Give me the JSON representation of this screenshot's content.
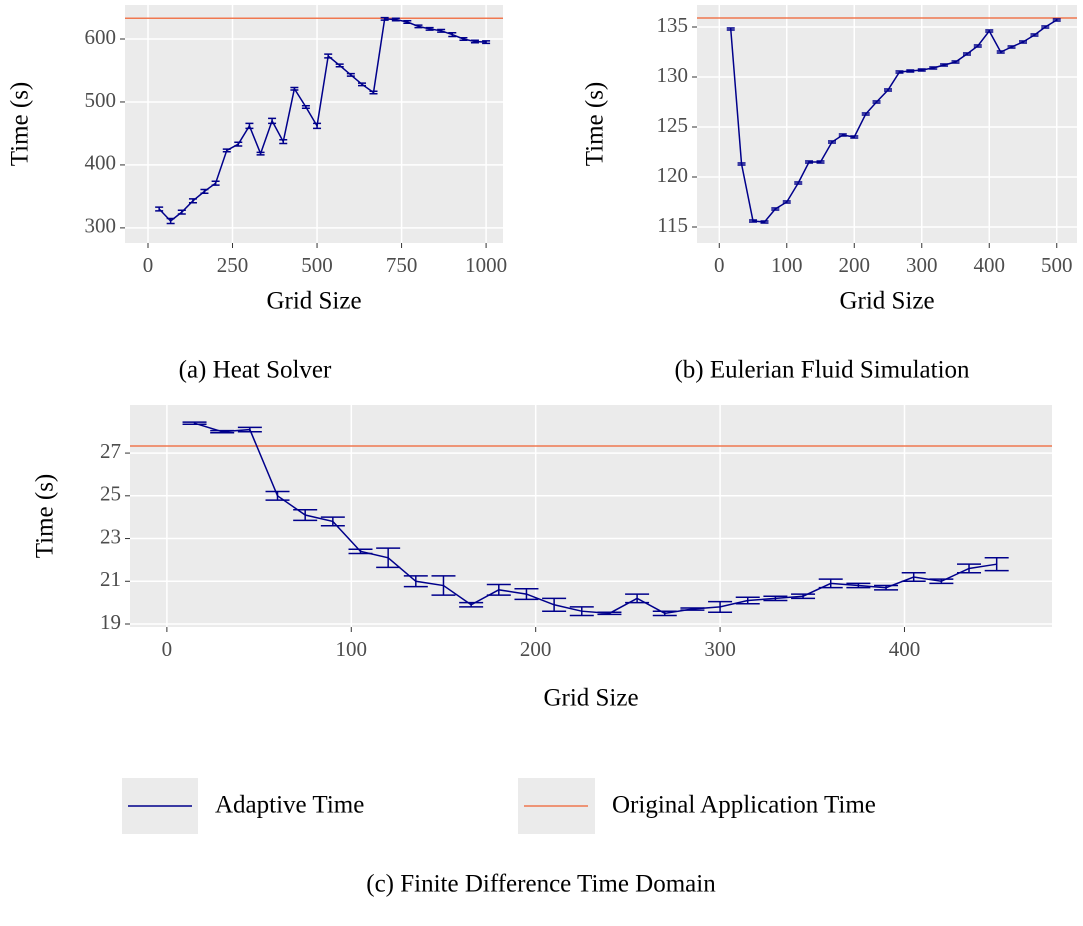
{
  "chart_data": [
    {
      "type": "line",
      "caption": "(a) Heat Solver",
      "xlabel": "Grid Size",
      "ylabel": "Time (s)",
      "x": [
        33,
        67,
        100,
        133,
        167,
        200,
        233,
        267,
        300,
        333,
        367,
        400,
        433,
        467,
        500,
        533,
        567,
        600,
        633,
        667,
        700,
        733,
        767,
        800,
        833,
        867,
        900,
        933,
        967,
        1000
      ],
      "series": [
        {
          "values": [
            330,
            311,
            325,
            343,
            358,
            371,
            423,
            433,
            462,
            418,
            470,
            437,
            521,
            492,
            462,
            573,
            558,
            543,
            528,
            515,
            632,
            631,
            627,
            620,
            616,
            613,
            607,
            600,
            596,
            595
          ],
          "errors": [
            3,
            4,
            3,
            3,
            3,
            3,
            2,
            3,
            4,
            2,
            4,
            3,
            2,
            2,
            4,
            3,
            2,
            2,
            2,
            2,
            2,
            2,
            2,
            2,
            2,
            2,
            3,
            2,
            2,
            2
          ]
        }
      ],
      "reference_value": 633,
      "xlim": [
        -68,
        1050
      ],
      "ylim": [
        276,
        654
      ],
      "xticks": [
        0,
        250,
        500,
        750,
        1000
      ],
      "yticks": [
        300,
        400,
        500,
        600
      ],
      "grid": true
    },
    {
      "type": "line",
      "caption": "(b) Eulerian Fluid Simulation",
      "xlabel": "Grid Size",
      "ylabel": "Time (s)",
      "x": [
        17,
        33,
        50,
        67,
        83,
        100,
        117,
        133,
        150,
        167,
        183,
        200,
        217,
        233,
        250,
        267,
        283,
        300,
        317,
        333,
        350,
        367,
        383,
        400,
        417,
        433,
        450,
        467,
        483,
        500
      ],
      "series": [
        {
          "values": [
            134.8,
            121.3,
            115.6,
            115.5,
            116.8,
            117.5,
            119.4,
            121.5,
            121.5,
            123.5,
            124.2,
            124.0,
            126.3,
            127.5,
            128.7,
            130.5,
            130.6,
            130.7,
            130.9,
            131.2,
            131.5,
            132.3,
            133.1,
            134.6,
            132.5,
            133.0,
            133.5,
            134.2,
            135.0,
            135.7
          ],
          "errors": [
            0.1,
            0.1,
            0.1,
            0.1,
            0.1,
            0.1,
            0.1,
            0.1,
            0.1,
            0.1,
            0.1,
            0.1,
            0.1,
            0.1,
            0.1,
            0.1,
            0.1,
            0.1,
            0.1,
            0.1,
            0.1,
            0.1,
            0.1,
            0.1,
            0.1,
            0.1,
            0.1,
            0.1,
            0.1,
            0.1
          ]
        }
      ],
      "reference_value": 135.9,
      "xlim": [
        -33,
        530
      ],
      "ylim": [
        113.4,
        137.2
      ],
      "xticks": [
        0,
        100,
        200,
        300,
        400,
        500
      ],
      "yticks": [
        115,
        120,
        125,
        130,
        135
      ],
      "grid": true
    },
    {
      "type": "line",
      "caption": "(c) Finite Difference Time Domain",
      "xlabel": "Grid Size",
      "ylabel": "Time (s)",
      "x": [
        15,
        30,
        45,
        60,
        75,
        90,
        105,
        120,
        135,
        150,
        165,
        180,
        195,
        210,
        225,
        240,
        255,
        270,
        285,
        300,
        315,
        330,
        345,
        360,
        375,
        390,
        405,
        420,
        435,
        450
      ],
      "series": [
        {
          "values": [
            28.4,
            28.0,
            28.1,
            25.0,
            24.1,
            23.8,
            22.4,
            22.1,
            21.0,
            20.8,
            19.9,
            20.6,
            20.4,
            19.9,
            19.6,
            19.5,
            20.2,
            19.5,
            19.7,
            19.8,
            20.1,
            20.2,
            20.3,
            20.9,
            20.8,
            20.7,
            21.2,
            21.0,
            21.6,
            21.8
          ],
          "errors": [
            0.05,
            0.05,
            0.1,
            0.2,
            0.25,
            0.2,
            0.1,
            0.45,
            0.25,
            0.45,
            0.1,
            0.25,
            0.25,
            0.3,
            0.2,
            0.05,
            0.2,
            0.1,
            0.05,
            0.25,
            0.15,
            0.1,
            0.1,
            0.2,
            0.1,
            0.1,
            0.2,
            0.1,
            0.2,
            0.3
          ]
        }
      ],
      "reference_value": 27.33,
      "xlim": [
        -20,
        480
      ],
      "ylim": [
        18.86,
        29.25
      ],
      "xticks": [
        0,
        100,
        200,
        300,
        400
      ],
      "yticks": [
        19,
        21,
        23,
        25,
        27
      ],
      "grid": true
    }
  ],
  "legend": [
    {
      "name": "Adaptive Time",
      "color": "#00008b"
    },
    {
      "name": "Original Application Time",
      "color": "#f07850"
    }
  ]
}
